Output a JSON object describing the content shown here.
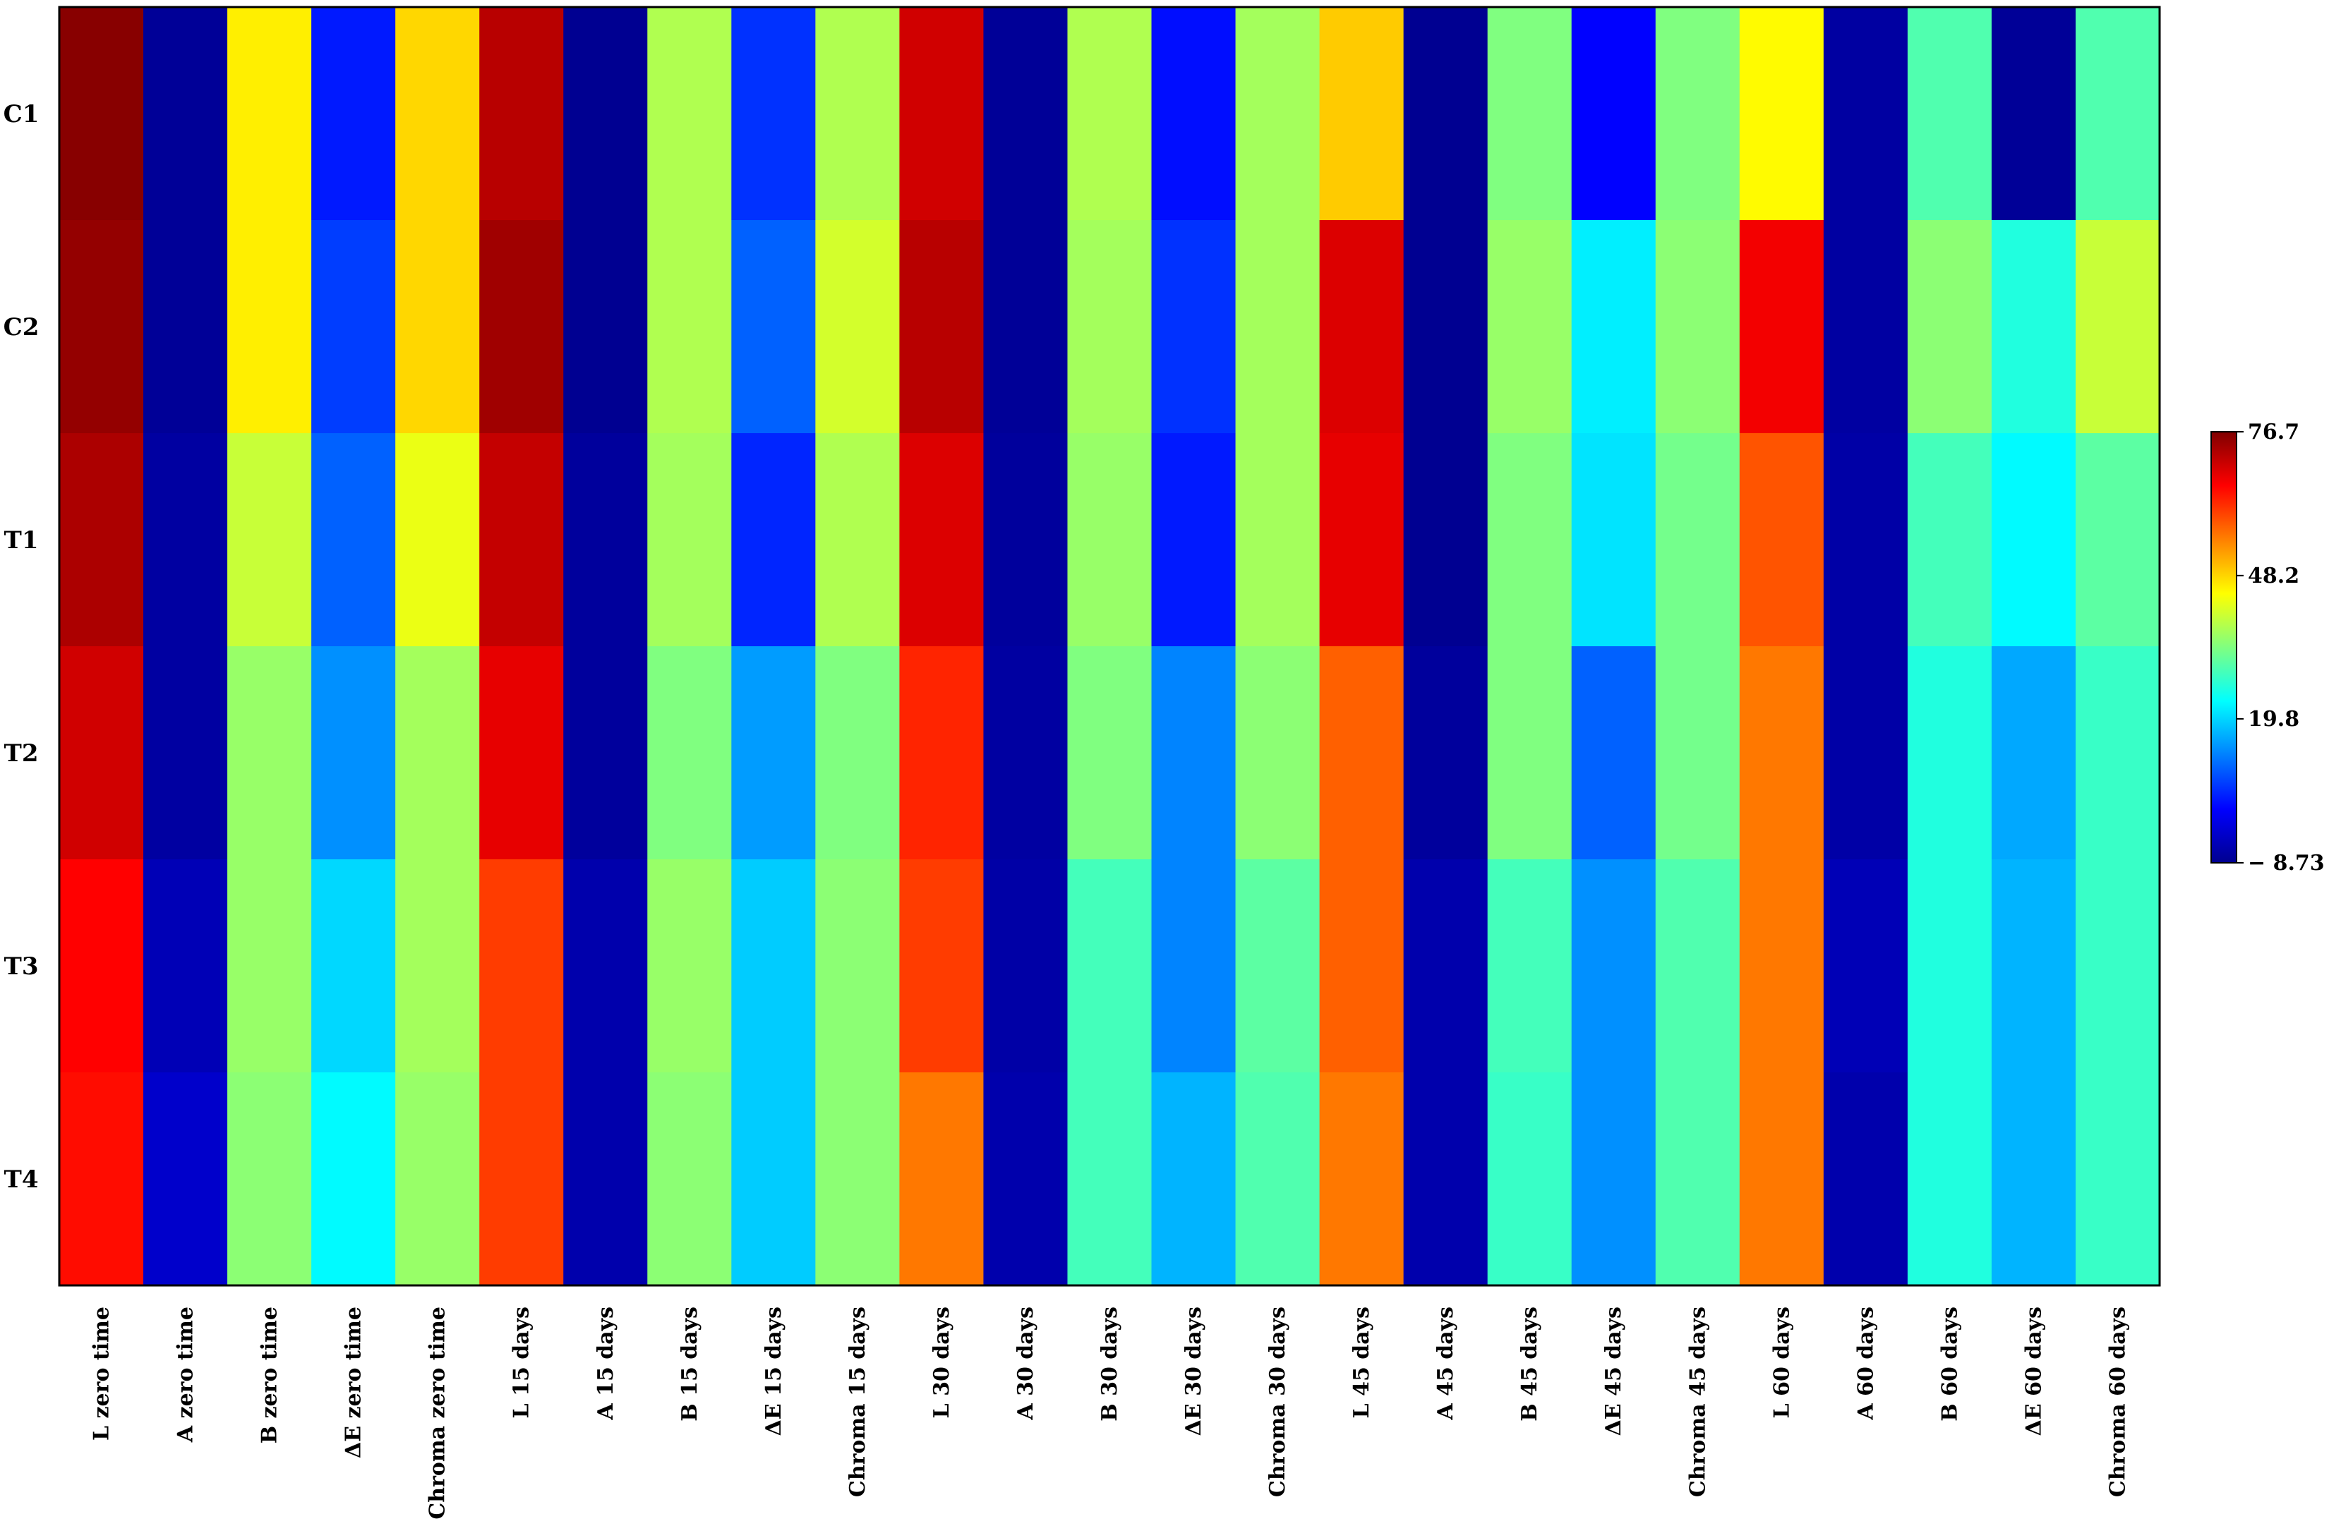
{
  "chart_data": {
    "type": "heatmap",
    "rows": [
      "C1",
      "C2",
      "T1",
      "T2",
      "T3",
      "T4"
    ],
    "columns": [
      "L  zero time",
      "A  zero time",
      "B  zero time",
      "ΔE  zero time",
      "Chroma zero time",
      "L  15 days",
      "A  15 days",
      "B  15 days",
      "ΔE  15 days",
      "Chroma 15 days",
      "L  30 days",
      "A  30 days",
      "B  30 days",
      "ΔE 30 days",
      "Chroma 30 days",
      "L  45 days",
      "A  45 days",
      "B  45 days",
      "ΔE 45 days",
      "Chroma 45 days",
      "L  60 days",
      "A  60 days",
      "B  60 days",
      "ΔE  60 days",
      "Chroma 60 days"
    ],
    "values": [
      [
        76.0,
        -8.0,
        46.0,
        4.0,
        48.0,
        72.0,
        -8.5,
        38.0,
        6.0,
        38.0,
        70.0,
        -8.0,
        38.0,
        3.0,
        37.0,
        49.0,
        -8.5,
        34.0,
        2.0,
        34.0,
        45.0,
        -7.0,
        30.0,
        -8.0,
        30.0
      ],
      [
        75.0,
        -8.0,
        46.0,
        7.0,
        48.0,
        74.0,
        -8.5,
        38.0,
        10.0,
        41.0,
        72.0,
        -8.0,
        37.0,
        6.0,
        37.0,
        69.0,
        -8.5,
        36.0,
        22.0,
        35.0,
        67.0,
        -7.0,
        35.0,
        26.0,
        40.0
      ],
      [
        73.0,
        -7.0,
        40.0,
        10.0,
        43.0,
        71.0,
        -7.5,
        37.0,
        5.0,
        38.0,
        69.0,
        -7.5,
        36.0,
        4.0,
        37.0,
        68.0,
        -8.5,
        34.0,
        21.0,
        33.0,
        59.0,
        -6.5,
        29.0,
        23.0,
        31.0
      ],
      [
        70.0,
        -7.0,
        36.0,
        14.0,
        37.0,
        68.0,
        -7.5,
        34.0,
        15.0,
        34.0,
        63.0,
        -7.0,
        34.0,
        13.0,
        35.0,
        58.0,
        -7.5,
        34.0,
        10.0,
        33.0,
        56.0,
        -6.5,
        26.0,
        16.0,
        28.0
      ],
      [
        66.0,
        -5.0,
        36.0,
        20.0,
        37.0,
        61.0,
        -6.0,
        36.0,
        19.0,
        35.0,
        61.0,
        -6.5,
        29.0,
        13.0,
        31.0,
        58.0,
        -6.0,
        29.0,
        14.0,
        30.0,
        56.0,
        -5.0,
        26.0,
        17.0,
        28.0
      ],
      [
        65.0,
        -3.0,
        35.0,
        23.0,
        36.0,
        61.0,
        -6.0,
        35.0,
        19.0,
        35.0,
        56.0,
        -6.0,
        29.0,
        17.0,
        30.0,
        56.0,
        -6.0,
        28.0,
        14.0,
        30.0,
        56.0,
        -6.0,
        26.0,
        17.0,
        28.0
      ]
    ],
    "colorbar": {
      "min": -8.73,
      "max": 76.7,
      "tick_labels": [
        "76.7",
        "48.2",
        "19.8",
        "− 8.73"
      ],
      "tick_values": [
        76.7,
        48.2,
        19.8,
        -8.73
      ],
      "colormap": [
        "#00008f",
        "#0000ff",
        "#0080ff",
        "#00ffff",
        "#80ff80",
        "#ffff00",
        "#ff8000",
        "#ff0000",
        "#800000"
      ]
    }
  }
}
